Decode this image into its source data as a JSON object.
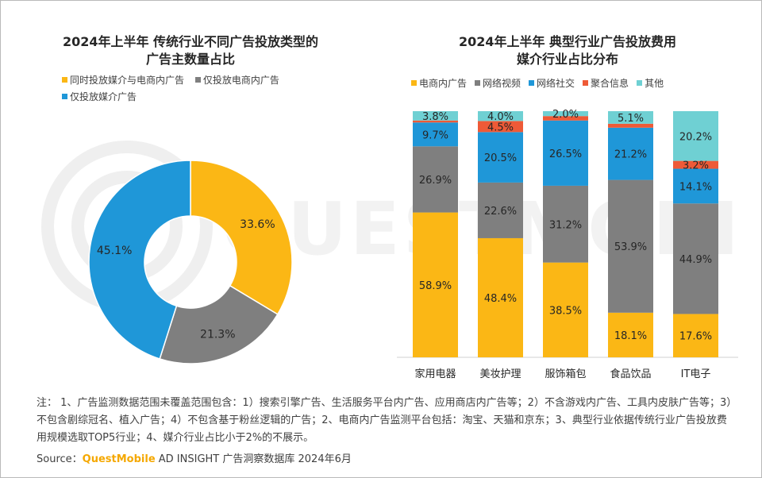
{
  "left_chart": {
    "title_line1": "2024年上半年 传统行业不同广告投放类型的",
    "title_line2": "广告主数量占比"
  },
  "right_chart": {
    "title_line1": "2024年上半年 典型行业广告投放费用",
    "title_line2": "媒介行业占比分布"
  },
  "watermark": "QUESTMOBILE",
  "footer": {
    "note": "注：  1、广告监测数据范围未覆盖范围包含：1）搜索引擎广告、生活服务平台内广告、应用商店内广告等；2）不含游戏内广告、工具内皮肤广告等；3）不包含剧综冠名、植入广告；4）不包含基于粉丝逻辑的广告；2、电商内广告监测平台包括：淘宝、天猫和京东；3、典型行业依据传统行业广告投放费用规模选取TOP5行业；4、媒介行业占比小于2%的不展示。",
    "source_label": "Source：",
    "source_brand": "QuestMobile",
    "source_text": " AD INSIGHT 广告洞察数据库 2024年6月"
  },
  "chart_data": [
    {
      "type": "pie",
      "variant": "donut",
      "slices": [
        {
          "label": "同时投放媒介与电商内广告",
          "value": 33.6,
          "value_label": "33.6%",
          "color": "#fbb715"
        },
        {
          "label": "仅投放电商内广告",
          "value": 21.3,
          "value_label": "21.3%",
          "color": "#7f7f7f"
        },
        {
          "label": "仅投放媒介广告",
          "value": 45.1,
          "value_label": "45.1%",
          "color": "#1f97d8"
        }
      ],
      "legend_position": "top"
    },
    {
      "type": "bar",
      "stacked": true,
      "percent": true,
      "categories": [
        "家用电器",
        "美妆护理",
        "服饰箱包",
        "食品饮品",
        "IT电子"
      ],
      "series": [
        {
          "name": "电商内广告",
          "color": "#fbb715",
          "values": [
            58.9,
            48.4,
            38.5,
            18.1,
            17.6
          ],
          "labels": [
            "58.9%",
            "48.4%",
            "38.5%",
            "18.1%",
            "17.6%"
          ]
        },
        {
          "name": "网络视频",
          "color": "#7f7f7f",
          "values": [
            26.9,
            22.6,
            31.2,
            53.9,
            44.9
          ],
          "labels": [
            "26.9%",
            "22.6%",
            "31.2%",
            "53.9%",
            "44.9%"
          ]
        },
        {
          "name": "网络社交",
          "color": "#1f97d8",
          "values": [
            9.7,
            20.5,
            26.5,
            21.2,
            14.1
          ],
          "labels": [
            "9.7%",
            "20.5%",
            "26.5%",
            "21.2%",
            "14.1%"
          ]
        },
        {
          "name": "聚合信息",
          "color": "#ee5a37",
          "values": [
            0.8,
            4.5,
            1.8,
            1.6,
            3.2
          ],
          "labels": [
            "",
            "4.5%",
            "",
            "",
            "3.2%"
          ]
        },
        {
          "name": "其他",
          "color": "#6fd0d3",
          "values": [
            3.8,
            4.0,
            2.0,
            5.1,
            20.2
          ],
          "labels": [
            "3.8%",
            "4.0%",
            "2.0%",
            "5.1%",
            "20.2%"
          ]
        }
      ],
      "legend_position": "top",
      "ylim": [
        0,
        100
      ]
    }
  ]
}
